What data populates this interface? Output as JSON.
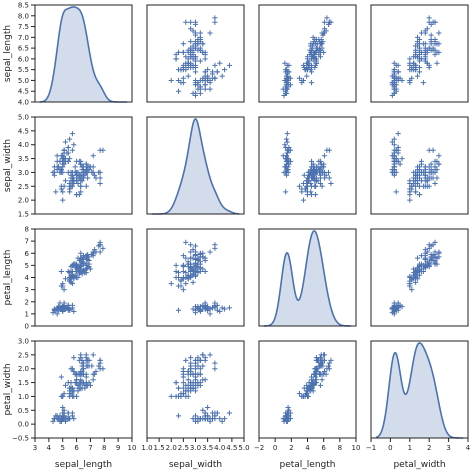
{
  "chart_data": {
    "type": "pairplot",
    "variables": [
      "sepal_length",
      "sepal_width",
      "petal_length",
      "petal_width"
    ],
    "ranges": {
      "sepal_length": [
        4.0,
        8.5
      ],
      "sepal_width": [
        1.5,
        5.0
      ],
      "petal_length": [
        0,
        8
      ],
      "petal_width": [
        -0.5,
        3.0
      ]
    },
    "x_ranges": {
      "sepal_length": [
        3,
        10
      ],
      "sepal_width": [
        1.0,
        5.0
      ],
      "petal_length": [
        -2,
        10
      ],
      "petal_width": [
        -1,
        4
      ]
    },
    "ticks": {
      "sepal_length": [
        4.0,
        4.5,
        5.0,
        5.5,
        6.0,
        6.5,
        7.0,
        7.5,
        8.0,
        8.5
      ],
      "sepal_width": [
        1.5,
        2.0,
        2.5,
        3.0,
        3.5,
        4.0,
        4.5,
        5.0
      ],
      "petal_length": [
        0,
        1,
        2,
        3,
        4,
        5,
        6,
        7,
        8
      ],
      "petal_width": [
        -0.5,
        0.0,
        0.5,
        1.0,
        1.5,
        2.0,
        2.5,
        3.0
      ]
    },
    "x_ticks": {
      "sepal_length": [
        3,
        4,
        5,
        6,
        7,
        8,
        9,
        10
      ],
      "sepal_width": [
        1.0,
        1.5,
        2.0,
        2.5,
        3.0,
        3.5,
        4.0,
        4.5,
        5.0
      ],
      "petal_length": [
        -2,
        0,
        2,
        4,
        6,
        8,
        10
      ],
      "petal_width": [
        -1,
        0,
        1,
        2,
        3,
        4
      ]
    },
    "tick_labels": {
      "sepal_length": [
        "4.0",
        "4.5",
        "5.0",
        "5.5",
        "6.0",
        "6.5",
        "7.0",
        "7.5",
        "8.0",
        "8.5"
      ],
      "sepal_width": [
        "1.5",
        "2.0",
        "2.5",
        "3.0",
        "3.5",
        "4.0",
        "4.5",
        "5.0"
      ],
      "petal_length": [
        "0",
        "1",
        "2",
        "3",
        "4",
        "5",
        "6",
        "7",
        "8"
      ],
      "petal_width": [
        "−0.5",
        "0.0",
        "0.5",
        "1.0",
        "1.5",
        "2.0",
        "2.5",
        "3.0"
      ]
    },
    "x_tick_labels": {
      "sepal_length": [
        "3",
        "4",
        "5",
        "6",
        "7",
        "8",
        "9",
        "10"
      ],
      "sepal_width": [
        "1.0",
        "1.5",
        "2.0",
        "2.5",
        "3.0",
        "3.5",
        "4.0",
        "4.5",
        "5.0"
      ],
      "petal_length": [
        "−2",
        "0",
        "2",
        "4",
        "6",
        "8",
        "10"
      ],
      "petal_width": [
        "−1",
        "0",
        "1",
        "2",
        "3",
        "4"
      ]
    },
    "diagonal": "kde",
    "off_diagonal": "scatter",
    "marker": "+",
    "grid": false,
    "legend": false,
    "colors": {
      "series": "#4c72b0",
      "axes": "#222222"
    },
    "samples": [
      [
        5.1,
        3.5,
        1.4,
        0.2
      ],
      [
        4.9,
        3.0,
        1.4,
        0.2
      ],
      [
        4.7,
        3.2,
        1.3,
        0.2
      ],
      [
        4.6,
        3.1,
        1.5,
        0.2
      ],
      [
        5.0,
        3.6,
        1.4,
        0.2
      ],
      [
        5.4,
        3.9,
        1.7,
        0.4
      ],
      [
        4.6,
        3.4,
        1.4,
        0.3
      ],
      [
        5.0,
        3.4,
        1.5,
        0.2
      ],
      [
        4.4,
        2.9,
        1.4,
        0.2
      ],
      [
        4.9,
        3.1,
        1.5,
        0.1
      ],
      [
        5.4,
        3.7,
        1.5,
        0.2
      ],
      [
        4.8,
        3.4,
        1.6,
        0.2
      ],
      [
        4.8,
        3.0,
        1.4,
        0.1
      ],
      [
        4.3,
        3.0,
        1.1,
        0.1
      ],
      [
        5.8,
        4.0,
        1.2,
        0.2
      ],
      [
        5.7,
        4.4,
        1.5,
        0.4
      ],
      [
        5.4,
        3.9,
        1.3,
        0.4
      ],
      [
        5.1,
        3.5,
        1.4,
        0.3
      ],
      [
        5.7,
        3.8,
        1.7,
        0.3
      ],
      [
        5.1,
        3.8,
        1.5,
        0.3
      ],
      [
        5.4,
        3.4,
        1.7,
        0.2
      ],
      [
        5.1,
        3.7,
        1.5,
        0.4
      ],
      [
        4.6,
        3.6,
        1.0,
        0.2
      ],
      [
        5.1,
        3.3,
        1.7,
        0.5
      ],
      [
        4.8,
        3.4,
        1.9,
        0.2
      ],
      [
        5.0,
        3.0,
        1.6,
        0.2
      ],
      [
        5.0,
        3.4,
        1.6,
        0.4
      ],
      [
        5.2,
        3.5,
        1.5,
        0.2
      ],
      [
        5.2,
        3.4,
        1.4,
        0.2
      ],
      [
        4.7,
        3.2,
        1.6,
        0.2
      ],
      [
        4.8,
        3.1,
        1.6,
        0.2
      ],
      [
        5.4,
        3.4,
        1.5,
        0.4
      ],
      [
        5.2,
        4.1,
        1.5,
        0.1
      ],
      [
        5.5,
        4.2,
        1.4,
        0.2
      ],
      [
        4.9,
        3.1,
        1.5,
        0.2
      ],
      [
        5.0,
        3.2,
        1.2,
        0.2
      ],
      [
        5.5,
        3.5,
        1.3,
        0.2
      ],
      [
        4.9,
        3.6,
        1.4,
        0.1
      ],
      [
        4.4,
        3.0,
        1.3,
        0.2
      ],
      [
        5.1,
        3.4,
        1.5,
        0.2
      ],
      [
        5.0,
        3.5,
        1.3,
        0.3
      ],
      [
        4.5,
        2.3,
        1.3,
        0.3
      ],
      [
        4.4,
        3.2,
        1.3,
        0.2
      ],
      [
        5.0,
        3.5,
        1.6,
        0.6
      ],
      [
        5.1,
        3.8,
        1.9,
        0.4
      ],
      [
        4.8,
        3.0,
        1.4,
        0.3
      ],
      [
        5.1,
        3.8,
        1.6,
        0.2
      ],
      [
        4.6,
        3.2,
        1.4,
        0.2
      ],
      [
        5.3,
        3.7,
        1.5,
        0.2
      ],
      [
        5.0,
        3.3,
        1.4,
        0.2
      ],
      [
        7.0,
        3.2,
        4.7,
        1.4
      ],
      [
        6.4,
        3.2,
        4.5,
        1.5
      ],
      [
        6.9,
        3.1,
        4.9,
        1.5
      ],
      [
        5.5,
        2.3,
        4.0,
        1.3
      ],
      [
        6.5,
        2.8,
        4.6,
        1.5
      ],
      [
        5.7,
        2.8,
        4.5,
        1.3
      ],
      [
        6.3,
        3.3,
        4.7,
        1.6
      ],
      [
        4.9,
        2.4,
        3.3,
        1.0
      ],
      [
        6.6,
        2.9,
        4.6,
        1.3
      ],
      [
        5.2,
        2.7,
        3.9,
        1.4
      ],
      [
        5.0,
        2.0,
        3.5,
        1.0
      ],
      [
        5.9,
        3.0,
        4.2,
        1.5
      ],
      [
        6.0,
        2.2,
        4.0,
        1.0
      ],
      [
        6.1,
        2.9,
        4.7,
        1.4
      ],
      [
        5.6,
        2.9,
        3.6,
        1.3
      ],
      [
        6.7,
        3.1,
        4.4,
        1.4
      ],
      [
        5.6,
        3.0,
        4.5,
        1.5
      ],
      [
        5.8,
        2.7,
        4.1,
        1.0
      ],
      [
        6.2,
        2.2,
        4.5,
        1.5
      ],
      [
        5.6,
        2.5,
        3.9,
        1.1
      ],
      [
        5.9,
        3.2,
        4.8,
        1.8
      ],
      [
        6.1,
        2.8,
        4.0,
        1.3
      ],
      [
        6.3,
        2.5,
        4.9,
        1.5
      ],
      [
        6.1,
        2.8,
        4.7,
        1.2
      ],
      [
        6.4,
        2.9,
        4.3,
        1.3
      ],
      [
        6.6,
        3.0,
        4.4,
        1.4
      ],
      [
        6.8,
        2.8,
        4.8,
        1.4
      ],
      [
        6.7,
        3.0,
        5.0,
        1.7
      ],
      [
        6.0,
        2.9,
        4.5,
        1.5
      ],
      [
        5.7,
        2.6,
        3.5,
        1.0
      ],
      [
        5.5,
        2.4,
        3.8,
        1.1
      ],
      [
        5.5,
        2.4,
        3.7,
        1.0
      ],
      [
        5.8,
        2.7,
        3.9,
        1.2
      ],
      [
        6.0,
        2.7,
        5.1,
        1.6
      ],
      [
        5.4,
        3.0,
        4.5,
        1.5
      ],
      [
        6.0,
        3.4,
        4.5,
        1.6
      ],
      [
        6.7,
        3.1,
        4.7,
        1.5
      ],
      [
        6.3,
        2.3,
        4.4,
        1.3
      ],
      [
        5.6,
        3.0,
        4.1,
        1.3
      ],
      [
        5.5,
        2.5,
        4.0,
        1.3
      ],
      [
        5.5,
        2.6,
        4.4,
        1.2
      ],
      [
        6.1,
        3.0,
        4.6,
        1.4
      ],
      [
        5.8,
        2.6,
        4.0,
        1.2
      ],
      [
        5.0,
        2.3,
        3.3,
        1.0
      ],
      [
        5.6,
        2.7,
        4.2,
        1.3
      ],
      [
        5.7,
        3.0,
        4.2,
        1.2
      ],
      [
        5.7,
        2.9,
        4.2,
        1.3
      ],
      [
        6.2,
        2.9,
        4.3,
        1.3
      ],
      [
        5.1,
        2.5,
        3.0,
        1.1
      ],
      [
        5.7,
        2.8,
        4.1,
        1.3
      ],
      [
        6.3,
        3.3,
        6.0,
        2.5
      ],
      [
        5.8,
        2.7,
        5.1,
        1.9
      ],
      [
        7.1,
        3.0,
        5.9,
        2.1
      ],
      [
        6.3,
        2.9,
        5.6,
        1.8
      ],
      [
        6.5,
        3.0,
        5.8,
        2.2
      ],
      [
        7.6,
        3.0,
        6.6,
        2.1
      ],
      [
        4.9,
        2.5,
        4.5,
        1.7
      ],
      [
        7.3,
        2.9,
        6.3,
        1.8
      ],
      [
        6.7,
        2.5,
        5.8,
        1.8
      ],
      [
        7.2,
        3.6,
        6.1,
        2.5
      ],
      [
        6.5,
        3.2,
        5.1,
        2.0
      ],
      [
        6.4,
        2.7,
        5.3,
        1.9
      ],
      [
        6.8,
        3.0,
        5.5,
        2.1
      ],
      [
        5.7,
        2.5,
        5.0,
        2.0
      ],
      [
        5.8,
        2.8,
        5.1,
        2.4
      ],
      [
        6.4,
        3.2,
        5.3,
        2.3
      ],
      [
        6.5,
        3.0,
        5.5,
        1.8
      ],
      [
        7.7,
        3.8,
        6.7,
        2.2
      ],
      [
        7.7,
        2.6,
        6.9,
        2.3
      ],
      [
        6.0,
        2.2,
        5.0,
        1.5
      ],
      [
        6.9,
        3.2,
        5.7,
        2.3
      ],
      [
        5.6,
        2.8,
        4.9,
        2.0
      ],
      [
        7.7,
        2.8,
        6.7,
        2.0
      ],
      [
        6.3,
        2.7,
        4.9,
        1.8
      ],
      [
        6.7,
        3.3,
        5.7,
        2.1
      ],
      [
        7.2,
        3.2,
        6.0,
        1.8
      ],
      [
        6.2,
        2.8,
        4.8,
        1.8
      ],
      [
        6.1,
        3.0,
        4.9,
        1.8
      ],
      [
        6.4,
        2.8,
        5.6,
        2.1
      ],
      [
        7.2,
        3.0,
        5.8,
        1.6
      ],
      [
        7.4,
        2.8,
        6.1,
        1.9
      ],
      [
        7.9,
        3.8,
        6.4,
        2.0
      ],
      [
        6.4,
        2.8,
        5.6,
        2.2
      ],
      [
        6.3,
        2.8,
        5.1,
        1.5
      ],
      [
        6.1,
        2.6,
        5.6,
        1.4
      ],
      [
        7.7,
        3.0,
        6.1,
        2.3
      ],
      [
        6.3,
        3.4,
        5.6,
        2.4
      ],
      [
        6.4,
        3.1,
        5.5,
        1.8
      ],
      [
        6.0,
        3.0,
        4.8,
        1.8
      ],
      [
        6.9,
        3.1,
        5.4,
        2.1
      ],
      [
        6.7,
        3.1,
        5.6,
        2.4
      ],
      [
        6.9,
        3.1,
        5.1,
        2.3
      ],
      [
        5.8,
        2.7,
        5.1,
        1.9
      ],
      [
        6.8,
        3.2,
        5.9,
        2.3
      ],
      [
        6.7,
        3.3,
        5.7,
        2.5
      ],
      [
        6.7,
        3.0,
        5.2,
        2.3
      ],
      [
        6.3,
        2.5,
        5.0,
        1.9
      ],
      [
        6.5,
        3.0,
        5.2,
        2.0
      ],
      [
        6.2,
        3.4,
        5.4,
        2.3
      ],
      [
        5.9,
        3.0,
        5.1,
        1.8
      ]
    ]
  }
}
